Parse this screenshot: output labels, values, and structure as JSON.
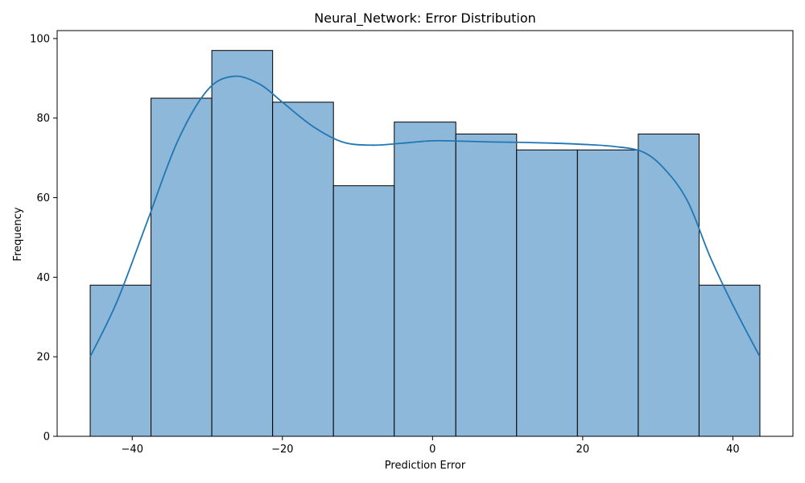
{
  "chart_data": {
    "type": "bar",
    "title": "Neural_Network: Error Distribution",
    "xlabel": "Prediction Error",
    "ylabel": "Frequency",
    "xlim": [
      -50,
      48
    ],
    "ylim": [
      0,
      102
    ],
    "xticks": [
      -40,
      -20,
      0,
      20,
      40
    ],
    "xtick_labels": [
      "−40",
      "−20",
      "0",
      "20",
      "40"
    ],
    "yticks": [
      0,
      20,
      40,
      60,
      80,
      100
    ],
    "ytick_labels": [
      "0",
      "20",
      "40",
      "60",
      "80",
      "100"
    ],
    "bins": [
      {
        "x0": -45.6,
        "x1": -37.5,
        "count": 38
      },
      {
        "x0": -37.5,
        "x1": -29.4,
        "count": 85
      },
      {
        "x0": -29.4,
        "x1": -21.3,
        "count": 97
      },
      {
        "x0": -21.3,
        "x1": -13.2,
        "count": 84
      },
      {
        "x0": -13.2,
        "x1": -5.1,
        "count": 63
      },
      {
        "x0": -5.1,
        "x1": 3.1,
        "count": 79
      },
      {
        "x0": 3.1,
        "x1": 11.2,
        "count": 76
      },
      {
        "x0": 11.2,
        "x1": 19.3,
        "count": 72
      },
      {
        "x0": 19.3,
        "x1": 27.4,
        "count": 72
      },
      {
        "x0": 27.4,
        "x1": 35.5,
        "count": 76
      },
      {
        "x0": 35.5,
        "x1": 43.6,
        "count": 38
      }
    ],
    "kde": {
      "x": [
        -45.6,
        -42,
        -38,
        -34,
        -30,
        -26.5,
        -23,
        -20,
        -16,
        -12,
        -8,
        -4,
        0,
        4,
        8,
        12,
        16,
        20,
        24,
        28,
        31,
        34,
        37,
        40,
        43.6
      ],
      "y": [
        20,
        34,
        54,
        74,
        87,
        90.5,
        88.5,
        84,
        78,
        74,
        73.2,
        73.7,
        74.3,
        74.2,
        74,
        73.9,
        73.7,
        73.4,
        72.9,
        71.5,
        67,
        59,
        45,
        33,
        20
      ]
    },
    "grid": false,
    "legend": "none",
    "colors": {
      "bar_fill": "#8db8da",
      "bar_edge": "#000000",
      "kde_line": "#1f77b4"
    }
  }
}
